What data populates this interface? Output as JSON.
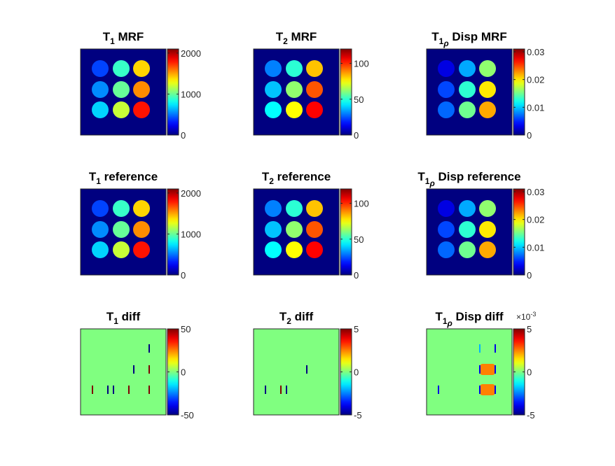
{
  "figure": {
    "colors": {
      "map_background": "#00008f",
      "diff_background": "#80ff80",
      "frame": "#262626"
    }
  },
  "chart_data": [
    {
      "type": "heatmap",
      "title_main": "T",
      "title_sub": "1",
      "title_greek": "",
      "title_rest": " MRF",
      "clim": [
        0,
        2100
      ],
      "ticks": [
        0,
        1000,
        2000
      ],
      "tick_labels": [
        "0",
        "1000",
        "2000"
      ],
      "exponent": "",
      "background_value": 0,
      "dots": [
        {
          "row": 1,
          "col": 1,
          "value": 400
        },
        {
          "row": 1,
          "col": 2,
          "value": 900
        },
        {
          "row": 1,
          "col": 3,
          "value": 1400
        },
        {
          "row": 2,
          "col": 1,
          "value": 550
        },
        {
          "row": 2,
          "col": 2,
          "value": 1000
        },
        {
          "row": 2,
          "col": 3,
          "value": 1550
        },
        {
          "row": 3,
          "col": 1,
          "value": 700
        },
        {
          "row": 3,
          "col": 2,
          "value": 1200
        },
        {
          "row": 3,
          "col": 3,
          "value": 1800
        }
      ]
    },
    {
      "type": "heatmap",
      "title_main": "T",
      "title_sub": "2",
      "title_greek": "",
      "title_rest": " MRF",
      "clim": [
        0,
        120
      ],
      "ticks": [
        0,
        50,
        100
      ],
      "tick_labels": [
        "0",
        "50",
        "100"
      ],
      "exponent": "",
      "background_value": 0,
      "dots": [
        {
          "row": 1,
          "col": 1,
          "value": 30
        },
        {
          "row": 1,
          "col": 2,
          "value": 50
        },
        {
          "row": 1,
          "col": 3,
          "value": 82
        },
        {
          "row": 2,
          "col": 1,
          "value": 38
        },
        {
          "row": 2,
          "col": 2,
          "value": 62
        },
        {
          "row": 2,
          "col": 3,
          "value": 95
        },
        {
          "row": 3,
          "col": 1,
          "value": 45
        },
        {
          "row": 3,
          "col": 2,
          "value": 75
        },
        {
          "row": 3,
          "col": 3,
          "value": 105
        }
      ]
    },
    {
      "type": "heatmap",
      "title_main": "T",
      "title_sub": "1",
      "title_greek": "ρ",
      "title_rest": " Disp MRF",
      "clim": [
        0,
        0.031
      ],
      "ticks": [
        0,
        0.01,
        0.02,
        0.03
      ],
      "tick_labels": [
        "0",
        "0.01",
        "0.02",
        "0.03"
      ],
      "exponent": "",
      "background_value": 0,
      "dots": [
        {
          "row": 1,
          "col": 1,
          "value": 0.003
        },
        {
          "row": 1,
          "col": 2,
          "value": 0.009
        },
        {
          "row": 1,
          "col": 3,
          "value": 0.016
        },
        {
          "row": 2,
          "col": 1,
          "value": 0.006
        },
        {
          "row": 2,
          "col": 2,
          "value": 0.013
        },
        {
          "row": 2,
          "col": 3,
          "value": 0.02
        },
        {
          "row": 3,
          "col": 1,
          "value": 0.007
        },
        {
          "row": 3,
          "col": 2,
          "value": 0.015
        },
        {
          "row": 3,
          "col": 3,
          "value": 0.022
        }
      ]
    },
    {
      "type": "heatmap",
      "title_main": "T",
      "title_sub": "1",
      "title_greek": "",
      "title_rest": " reference",
      "clim": [
        0,
        2100
      ],
      "ticks": [
        0,
        1000,
        2000
      ],
      "tick_labels": [
        "0",
        "1000",
        "2000"
      ],
      "exponent": "",
      "background_value": 0,
      "dots": [
        {
          "row": 1,
          "col": 1,
          "value": 400
        },
        {
          "row": 1,
          "col": 2,
          "value": 900
        },
        {
          "row": 1,
          "col": 3,
          "value": 1400
        },
        {
          "row": 2,
          "col": 1,
          "value": 550
        },
        {
          "row": 2,
          "col": 2,
          "value": 1000
        },
        {
          "row": 2,
          "col": 3,
          "value": 1550
        },
        {
          "row": 3,
          "col": 1,
          "value": 700
        },
        {
          "row": 3,
          "col": 2,
          "value": 1200
        },
        {
          "row": 3,
          "col": 3,
          "value": 1800
        }
      ]
    },
    {
      "type": "heatmap",
      "title_main": "T",
      "title_sub": "2",
      "title_greek": "",
      "title_rest": " reference",
      "clim": [
        0,
        120
      ],
      "ticks": [
        0,
        50,
        100
      ],
      "tick_labels": [
        "0",
        "50",
        "100"
      ],
      "exponent": "",
      "background_value": 0,
      "dots": [
        {
          "row": 1,
          "col": 1,
          "value": 30
        },
        {
          "row": 1,
          "col": 2,
          "value": 50
        },
        {
          "row": 1,
          "col": 3,
          "value": 82
        },
        {
          "row": 2,
          "col": 1,
          "value": 38
        },
        {
          "row": 2,
          "col": 2,
          "value": 62
        },
        {
          "row": 2,
          "col": 3,
          "value": 95
        },
        {
          "row": 3,
          "col": 1,
          "value": 45
        },
        {
          "row": 3,
          "col": 2,
          "value": 75
        },
        {
          "row": 3,
          "col": 3,
          "value": 105
        }
      ]
    },
    {
      "type": "heatmap",
      "title_main": "T",
      "title_sub": "1",
      "title_greek": "ρ",
      "title_rest": " Disp reference",
      "clim": [
        0,
        0.031
      ],
      "ticks": [
        0,
        0.01,
        0.02,
        0.03
      ],
      "tick_labels": [
        "0",
        "0.01",
        "0.02",
        "0.03"
      ],
      "exponent": "",
      "background_value": 0,
      "dots": [
        {
          "row": 1,
          "col": 1,
          "value": 0.003
        },
        {
          "row": 1,
          "col": 2,
          "value": 0.009
        },
        {
          "row": 1,
          "col": 3,
          "value": 0.016
        },
        {
          "row": 2,
          "col": 1,
          "value": 0.006
        },
        {
          "row": 2,
          "col": 2,
          "value": 0.013
        },
        {
          "row": 2,
          "col": 3,
          "value": 0.02
        },
        {
          "row": 3,
          "col": 1,
          "value": 0.007
        },
        {
          "row": 3,
          "col": 2,
          "value": 0.015
        },
        {
          "row": 3,
          "col": 3,
          "value": 0.022
        }
      ]
    },
    {
      "type": "heatmap",
      "title_main": "T",
      "title_sub": "1",
      "title_greek": "",
      "title_rest": " diff",
      "clim": [
        -50,
        50
      ],
      "ticks": [
        -50,
        0,
        50
      ],
      "tick_labels": [
        "-50",
        "0",
        "50"
      ],
      "exponent": "",
      "background_value": 0,
      "artifacts": [
        {
          "row": 1,
          "col": 3,
          "side": "right",
          "value": -50
        },
        {
          "row": 2,
          "col": 3,
          "side": "left",
          "value": -50
        },
        {
          "row": 2,
          "col": 3,
          "side": "right",
          "value": 50
        },
        {
          "row": 3,
          "col": 1,
          "side": "left",
          "value": 50
        },
        {
          "row": 3,
          "col": 1,
          "side": "right",
          "value": -50
        },
        {
          "row": 3,
          "col": 2,
          "side": "left",
          "value": -50
        },
        {
          "row": 3,
          "col": 2,
          "side": "right",
          "value": 50
        },
        {
          "row": 3,
          "col": 3,
          "side": "right",
          "value": 50
        }
      ]
    },
    {
      "type": "heatmap",
      "title_main": "T",
      "title_sub": "2",
      "title_greek": "",
      "title_rest": " diff",
      "clim": [
        -5,
        5
      ],
      "ticks": [
        -5,
        0,
        5
      ],
      "tick_labels": [
        "-5",
        "0",
        "5"
      ],
      "exponent": "",
      "background_value": 0,
      "artifacts": [
        {
          "row": 2,
          "col": 3,
          "side": "left",
          "value": -5
        },
        {
          "row": 3,
          "col": 1,
          "side": "left",
          "value": -5
        },
        {
          "row": 3,
          "col": 1,
          "side": "right",
          "value": 5
        },
        {
          "row": 3,
          "col": 2,
          "side": "left",
          "value": -5
        }
      ]
    },
    {
      "type": "heatmap",
      "title_main": "T",
      "title_sub": "1",
      "title_greek": "ρ",
      "title_rest": " Disp diff",
      "clim": [
        -5,
        5
      ],
      "ticks": [
        -5,
        0,
        5
      ],
      "tick_labels": [
        "-5",
        "0",
        "5"
      ],
      "exponent": "×10-3",
      "background_value": 0,
      "blobs": [
        {
          "row": 2,
          "col": 3,
          "value": 2.5
        },
        {
          "row": 3,
          "col": 3,
          "value": 2.5
        }
      ],
      "artifacts": [
        {
          "row": 1,
          "col": 3,
          "side": "left",
          "value": -2
        },
        {
          "row": 1,
          "col": 3,
          "side": "right",
          "value": -4
        },
        {
          "row": 2,
          "col": 3,
          "side": "left",
          "value": -4
        },
        {
          "row": 2,
          "col": 3,
          "side": "right",
          "value": -4
        },
        {
          "row": 3,
          "col": 1,
          "side": "left",
          "value": -4
        },
        {
          "row": 3,
          "col": 3,
          "side": "left",
          "value": -4
        },
        {
          "row": 3,
          "col": 3,
          "side": "right",
          "value": -4
        }
      ]
    }
  ]
}
